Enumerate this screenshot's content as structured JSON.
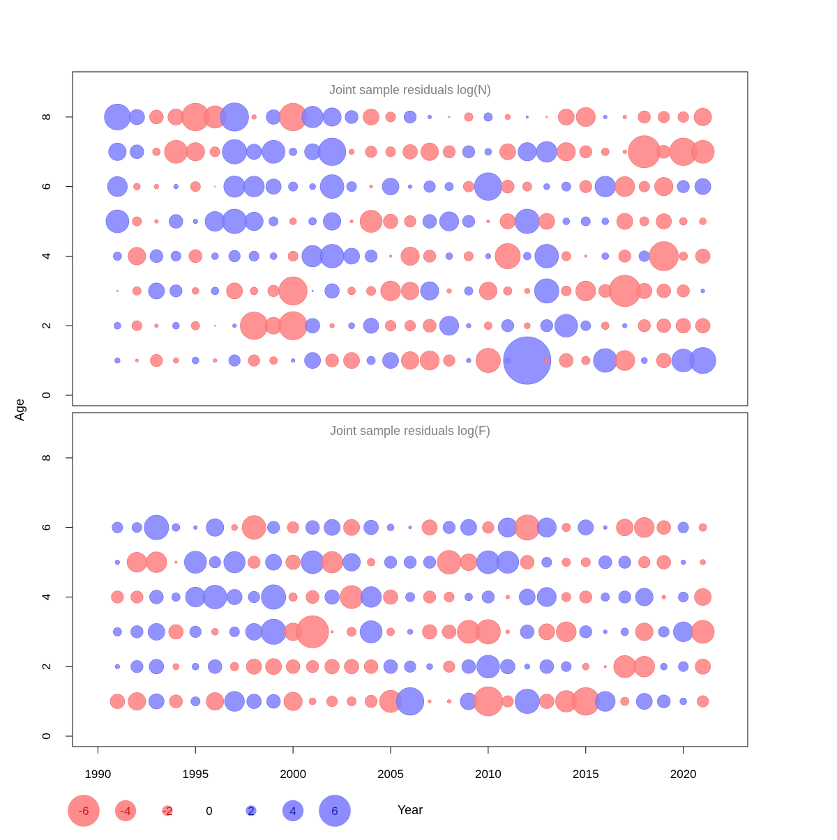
{
  "chart_data": {
    "type": "scatter",
    "subtype": "bubble",
    "xlabel": "Year",
    "ylabel": "Age",
    "xlim": [
      1988.7,
      2023.3
    ],
    "ylim": [
      -0.3,
      9.3
    ],
    "x_ticks": [
      1990,
      1995,
      2000,
      2005,
      2010,
      2015,
      2020
    ],
    "y_ticks": [
      0,
      2,
      4,
      6,
      8
    ],
    "colors": {
      "positive": "#8080ff",
      "negative": "#ff8080",
      "positive_label": "#2020a0",
      "negative_label": "#c02020",
      "axis": "#000000",
      "title": "#808080"
    },
    "years": [
      1991,
      1992,
      1993,
      1994,
      1995,
      1996,
      1997,
      1998,
      1999,
      2000,
      2001,
      2002,
      2003,
      2004,
      2005,
      2006,
      2007,
      2008,
      2009,
      2010,
      2011,
      2012,
      2013,
      2014,
      2015,
      2016,
      2017,
      2018,
      2019,
      2020,
      2021
    ],
    "legend": {
      "position": "bottom",
      "values": [
        -6,
        -4,
        -2,
        0,
        2,
        4,
        6
      ],
      "labels": [
        "-6",
        "-4",
        "-2",
        "0",
        "2",
        "4",
        "6"
      ]
    },
    "panels": [
      {
        "title": "Joint sample residuals log(N)",
        "ages": [
          1,
          2,
          3,
          4,
          5,
          6,
          7,
          8
        ],
        "residuals": [
          [
            0.7,
            -0.4,
            -1.6,
            -0.7,
            0.9,
            -0.5,
            1.5,
            -1.5,
            -1.0,
            0.5,
            2.1,
            -1.7,
            -2.1,
            1.1,
            2.1,
            -2.3,
            -2.5,
            -1.5,
            0.6,
            -3.2,
            0.8,
            6.2,
            -0.6,
            -1.8,
            -1.1,
            3.1,
            -2.6,
            0.8,
            -1.9,
            3.0,
            3.4
          ],
          [
            0.9,
            -1.3,
            -0.5,
            0.9,
            -1.1,
            0.1,
            0.5,
            -3.6,
            -2.2,
            -3.7,
            1.9,
            -0.6,
            0.8,
            2.0,
            -1.4,
            -1.4,
            -1.7,
            2.5,
            0.6,
            -1.0,
            1.6,
            -0.8,
            1.6,
            3.0,
            1.3,
            -1.0,
            0.6,
            -1.6,
            -1.8,
            -1.9,
            -1.9
          ],
          [
            -0.2,
            -1.1,
            2.1,
            1.6,
            -0.9,
            1.0,
            -2.1,
            -1.0,
            -1.5,
            -3.7,
            0.2,
            1.9,
            -1.0,
            -1.2,
            -2.6,
            -2.3,
            2.4,
            -0.6,
            1.1,
            -2.3,
            -1.1,
            -0.7,
            3.2,
            -1.3,
            -2.6,
            -1.7,
            -4.1,
            -2.0,
            -1.8,
            -1.6,
            0.5
          ],
          [
            1.1,
            -2.3,
            1.7,
            1.3,
            -1.7,
            0.9,
            1.5,
            1.3,
            0.9,
            -1.3,
            2.8,
            3.1,
            2.1,
            1.6,
            -0.3,
            -2.4,
            -1.6,
            0.9,
            -1.2,
            0.7,
            -3.3,
            1.0,
            3.1,
            -1.2,
            -0.3,
            0.9,
            -1.6,
            1.4,
            -3.8,
            -1.1,
            -1.9
          ],
          [
            3.0,
            -1.2,
            -0.5,
            1.8,
            0.6,
            2.6,
            3.2,
            2.4,
            1.2,
            -0.9,
            1.0,
            2.3,
            -0.4,
            -2.9,
            -1.9,
            -1.5,
            1.8,
            2.5,
            1.6,
            -0.4,
            -2.0,
            3.2,
            -2.1,
            0.9,
            1.2,
            0.9,
            -2.1,
            -1.2,
            -2.0,
            -1.0,
            -0.9
          ],
          [
            2.6,
            -0.9,
            -0.6,
            0.6,
            -1.3,
            -0.1,
            2.8,
            2.7,
            2.0,
            1.2,
            0.8,
            3.1,
            1.3,
            -0.4,
            2.2,
            0.5,
            1.5,
            1.1,
            -1.4,
            3.6,
            -1.7,
            -1.2,
            0.8,
            1.2,
            -1.6,
            2.7,
            -2.6,
            -1.4,
            -2.4,
            1.6,
            2.1
          ],
          [
            2.3,
            1.8,
            -1.0,
            -3.0,
            -2.4,
            -1.3,
            3.2,
            2.0,
            3.0,
            1.0,
            2.1,
            3.6,
            -0.7,
            -1.5,
            -1.3,
            -1.9,
            -2.3,
            -1.6,
            1.6,
            0.9,
            -2.1,
            2.4,
            2.7,
            -2.4,
            -1.6,
            -1.0,
            -0.5,
            -4.2,
            -1.7,
            -3.6,
            -3.0
          ],
          [
            3.4,
            2.0,
            -1.8,
            -2.1,
            -3.6,
            -2.9,
            3.7,
            -0.6,
            1.9,
            -3.6,
            2.8,
            2.4,
            1.7,
            -2.1,
            -1.3,
            1.6,
            0.5,
            -0.2,
            -1.1,
            1.1,
            -0.7,
            0.3,
            -0.2,
            -2.1,
            -2.5,
            0.5,
            -0.5,
            -1.6,
            -1.5,
            -1.4,
            -2.3
          ]
        ]
      },
      {
        "title": "Joint sample residuals log(F)",
        "ages": [
          1,
          2,
          3,
          4,
          5,
          6
        ],
        "residuals": [
          [
            -1.9,
            -2.3,
            2.0,
            -1.7,
            1.2,
            -2.3,
            2.6,
            1.9,
            1.8,
            -2.4,
            -0.9,
            -1.4,
            -1.2,
            -1.6,
            -2.9,
            3.6,
            -0.4,
            -0.5,
            2.2,
            -3.8,
            -1.5,
            3.2,
            -1.9,
            -2.8,
            -3.6,
            2.6,
            -1.1,
            2.1,
            1.7,
            0.9,
            -1.5
          ],
          [
            0.6,
            1.6,
            1.9,
            -0.8,
            0.9,
            1.8,
            -1.1,
            -2.0,
            -2.1,
            -1.8,
            -1.6,
            -1.9,
            -1.9,
            -1.8,
            1.8,
            1.5,
            0.8,
            -1.5,
            1.8,
            3.0,
            1.9,
            0.7,
            1.8,
            1.3,
            -0.9,
            -0.3,
            -2.9,
            -2.7,
            0.9,
            1.3,
            -2.0
          ],
          [
            1.1,
            1.6,
            2.2,
            -1.9,
            1.5,
            -0.9,
            1.3,
            2.2,
            3.3,
            -2.3,
            -4.2,
            -0.3,
            -1.2,
            2.9,
            -1.0,
            0.7,
            -1.9,
            -1.8,
            -3.0,
            -3.2,
            -0.5,
            1.8,
            -2.1,
            -2.6,
            1.6,
            0.5,
            1.0,
            -2.3,
            1.4,
            2.6,
            -3.0
          ],
          [
            -1.6,
            -1.6,
            1.8,
            1.1,
            2.6,
            3.1,
            2.0,
            1.5,
            3.2,
            -1.1,
            -1.7,
            1.9,
            -3.0,
            2.7,
            -1.9,
            1.2,
            -1.6,
            -1.3,
            1.0,
            1.6,
            -0.5,
            2.1,
            2.5,
            -1.2,
            -1.6,
            1.1,
            1.6,
            2.3,
            -0.5,
            1.3,
            -2.2
          ],
          [
            0.6,
            -2.6,
            -2.7,
            -0.3,
            2.9,
            1.5,
            2.8,
            -1.6,
            2.1,
            -1.9,
            3.0,
            -2.8,
            2.3,
            -1.0,
            1.6,
            1.6,
            1.6,
            -3.1,
            -2.2,
            3.0,
            2.9,
            -1.8,
            1.3,
            -1.1,
            -1.2,
            1.7,
            1.6,
            -1.5,
            -1.8,
            0.6,
            -0.7
          ],
          [
            1.4,
            1.3,
            3.2,
            1.0,
            0.5,
            2.3,
            -0.8,
            -3.1,
            1.6,
            -1.5,
            1.8,
            2.1,
            -2.1,
            1.9,
            0.9,
            0.4,
            -2.0,
            1.6,
            2.1,
            -1.5,
            2.5,
            -3.3,
            2.5,
            -1.1,
            2.0,
            0.5,
            -2.2,
            -2.6,
            -1.8,
            1.4,
            -1.0
          ]
        ]
      }
    ]
  }
}
